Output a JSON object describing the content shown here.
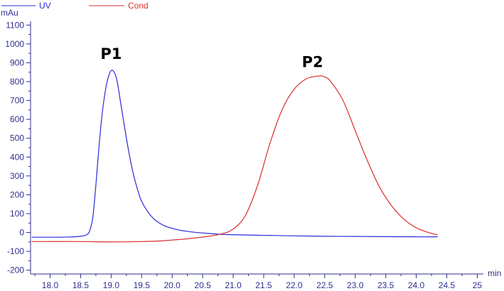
{
  "chart_data": {
    "type": "line",
    "xlabel": "min",
    "ylabel": "mAu",
    "xlim": [
      17.68,
      25.1
    ],
    "ylim": [
      -220,
      1120
    ],
    "x_ticks": [
      "18.0",
      "18.5",
      "19.0",
      "19.5",
      "20.0",
      "20.5",
      "21.0",
      "21.5",
      "22.0",
      "22.5",
      "23.0",
      "23.5",
      "24.0",
      "24.5",
      "25"
    ],
    "y_ticks": [
      "-200",
      "-100",
      "0",
      "100",
      "200",
      "300",
      "400",
      "500",
      "600",
      "700",
      "800",
      "900",
      "1000",
      "1100"
    ],
    "grid": false,
    "legend_position": "top-left",
    "annotations": [
      {
        "text": "P1",
        "x": 19.0,
        "y": 920
      },
      {
        "text": "P2",
        "x": 22.3,
        "y": 878
      }
    ],
    "series": [
      {
        "name": "UV",
        "color": "#2b2bd8",
        "x": [
          17.7,
          18.0,
          18.3,
          18.5,
          18.6,
          18.65,
          18.7,
          18.75,
          18.8,
          18.85,
          18.9,
          18.95,
          19.0,
          19.05,
          19.1,
          19.15,
          19.2,
          19.25,
          19.3,
          19.35,
          19.4,
          19.45,
          19.5,
          19.6,
          19.7,
          19.8,
          19.9,
          20.0,
          20.1,
          20.2,
          20.4,
          20.6,
          20.8,
          21.0,
          21.5,
          22.0,
          22.5,
          23.0,
          23.5,
          24.0,
          24.35
        ],
        "y": [
          -25,
          -25,
          -24,
          -20,
          -12,
          10,
          80,
          250,
          450,
          620,
          740,
          820,
          858,
          850,
          800,
          700,
          600,
          500,
          410,
          330,
          265,
          210,
          165,
          110,
          72,
          48,
          32,
          22,
          14,
          8,
          0,
          -5,
          -10,
          -12,
          -15,
          -18,
          -20,
          -21,
          -22,
          -23,
          -23
        ]
      },
      {
        "name": "Cond",
        "color": "#d83030",
        "x": [
          17.7,
          18.5,
          19.0,
          19.5,
          19.8,
          20.0,
          20.2,
          20.4,
          20.6,
          20.8,
          21.0,
          21.2,
          21.4,
          21.6,
          21.8,
          22.0,
          22.2,
          22.4,
          22.5,
          22.6,
          22.8,
          23.0,
          23.2,
          23.4,
          23.6,
          23.8,
          24.0,
          24.2,
          24.35
        ],
        "y": [
          -48,
          -48,
          -50,
          -48,
          -45,
          -40,
          -35,
          -28,
          -20,
          -8,
          18,
          90,
          250,
          470,
          650,
          760,
          815,
          830,
          825,
          800,
          700,
          540,
          380,
          240,
          140,
          70,
          25,
          0,
          -12
        ]
      }
    ]
  }
}
